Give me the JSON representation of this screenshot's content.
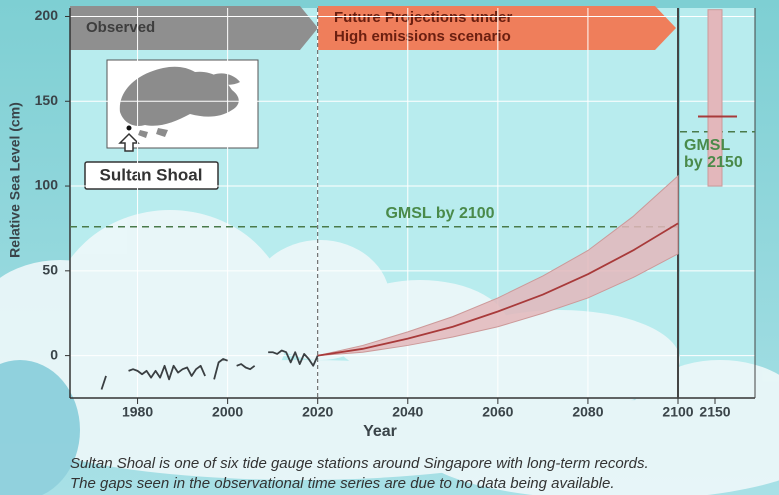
{
  "chart_data": {
    "type": "line",
    "ylabel": "Relative Sea Level (cm)",
    "xlabel": "Year",
    "xlim": [
      1965,
      2100
    ],
    "ylim": [
      -25,
      205
    ],
    "xticks": [
      1980,
      2000,
      2020,
      2040,
      2060,
      2080,
      2100
    ],
    "yticks": [
      0,
      50,
      100,
      150,
      200
    ],
    "grid": true,
    "banners": [
      "Observed",
      [
        "Future Projections under",
        "High emissions scenario"
      ]
    ],
    "inset_label": "Sultan Shoal",
    "observed": {
      "color": "#3a3f42",
      "x": [
        1972,
        1973,
        1974,
        1975,
        1976,
        1977,
        1978,
        1979,
        1980,
        1981,
        1982,
        1983,
        1984,
        1985,
        1986,
        1987,
        1988,
        1989,
        1990,
        1991,
        1992,
        1993,
        1994,
        1995,
        1996,
        1997,
        1998,
        1999,
        2000,
        2001,
        2002,
        2003,
        2004,
        2005,
        2006,
        2007,
        2008,
        2009,
        2010,
        2011,
        2012,
        2013,
        2014,
        2015,
        2016,
        2017,
        2018,
        2019,
        2020
      ],
      "values": [
        -20,
        -12,
        null,
        null,
        null,
        null,
        -9,
        -8,
        -9,
        -11,
        -9,
        -13,
        -9,
        -13,
        -6,
        -14,
        -6,
        -10,
        -8,
        -7,
        -12,
        -8,
        -6,
        -12,
        null,
        -14,
        -4,
        -2,
        -3,
        null,
        -6,
        -5,
        -7,
        -8,
        -6,
        null,
        null,
        2,
        2,
        1,
        3,
        2,
        -4,
        2,
        -5,
        1,
        -2,
        -6,
        0
      ]
    },
    "projection": {
      "color": "#a83a3a",
      "band_color": "#e3b7bb",
      "x": [
        2020,
        2030,
        2040,
        2050,
        2060,
        2070,
        2080,
        2090,
        2100
      ],
      "median": [
        0,
        4,
        10,
        17,
        26,
        36,
        48,
        62,
        78
      ],
      "low": [
        0,
        2,
        6,
        11,
        17,
        25,
        34,
        46,
        60
      ],
      "high": [
        0,
        6,
        14,
        23,
        34,
        47,
        62,
        82,
        106
      ]
    },
    "gmsl_2100": {
      "value": 76,
      "label": "GMSL by 2100",
      "color": "#4a8a4a"
    },
    "side_panel": {
      "xtick": 2150,
      "low": 100,
      "high": 204,
      "median": 141,
      "gmsl": 132,
      "label": [
        "GMSL",
        "by 2150"
      ]
    },
    "caption": [
      "Sultan Shoal is one of six tide gauge stations around Singapore with long-term records.",
      "The gaps seen in the observational time series are due to no data being available."
    ]
  }
}
